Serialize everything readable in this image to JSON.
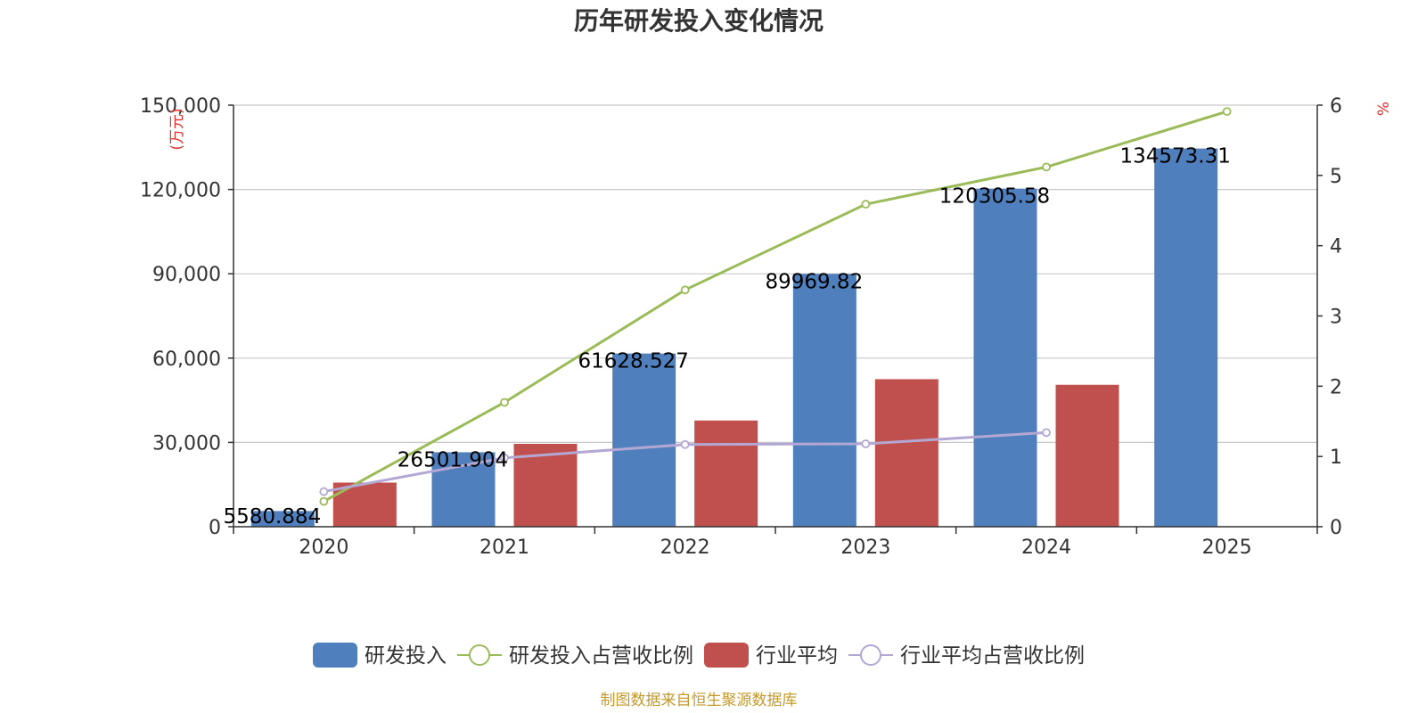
{
  "chart_data": {
    "type": "bar",
    "title": "历年研发投入变化情况",
    "categories": [
      "2020",
      "2021",
      "2022",
      "2023",
      "2024",
      "2025"
    ],
    "y_left": {
      "unit_label": "(万元)",
      "ylim": [
        0,
        150000
      ],
      "ticks": [
        "0",
        "30,000",
        "60,000",
        "90,000",
        "120,000",
        "150,000"
      ]
    },
    "y_right": {
      "unit_label": "%",
      "ylim": [
        0,
        6
      ],
      "ticks": [
        "0",
        "1",
        "2",
        "3",
        "4",
        "5",
        "6"
      ]
    },
    "series": [
      {
        "name": "研发投入",
        "type": "bar",
        "axis": "left",
        "color": "#4f7fbd",
        "values": [
          5580.884,
          26501.904,
          61628.527,
          89969.82,
          120305.58,
          134573.31
        ],
        "labels": [
          "5580.884",
          "26501.904",
          "61628.527",
          "89969.82",
          "120305.58",
          "134573.31"
        ]
      },
      {
        "name": "研发投入占营收比例",
        "type": "line",
        "axis": "right",
        "color": "#9bbb59",
        "values": [
          0.36,
          1.77,
          3.37,
          4.59,
          5.12,
          5.91
        ]
      },
      {
        "name": "行业平均",
        "type": "bar",
        "axis": "left",
        "color": "#c0504d",
        "values": [
          15700,
          29500,
          37800,
          52500,
          50500,
          null
        ]
      },
      {
        "name": "行业平均占营收比例",
        "type": "line",
        "axis": "right",
        "color": "#b3a7d3",
        "values": [
          0.5,
          0.98,
          1.17,
          1.18,
          1.34,
          null
        ]
      }
    ],
    "grid": true,
    "legend_position": "bottom"
  },
  "source_note": "制图数据来自恒生聚源数据库",
  "colors": {
    "axis": "#333333",
    "grid": "#c8c8c8",
    "unit_red": "#e03030",
    "source": "#c49a2c",
    "marker_fill": "#ffffff"
  }
}
